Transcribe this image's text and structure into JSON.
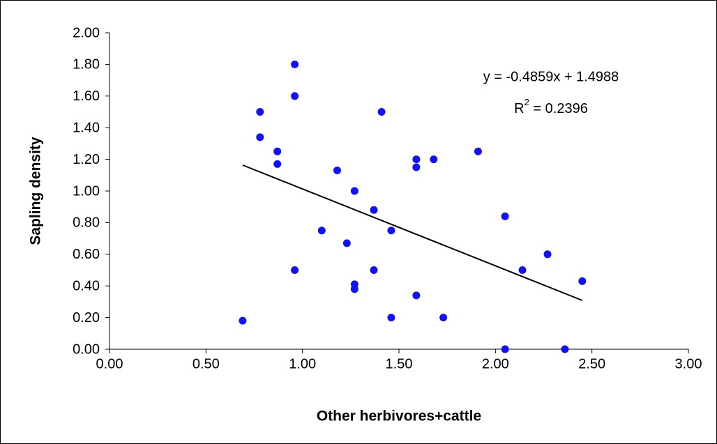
{
  "chart_data": {
    "type": "scatter",
    "x_label": "Other herbivores+cattle",
    "y_label": "Sapling density",
    "color": "#1010ff",
    "x": [
      0.69,
      0.78,
      0.78,
      0.87,
      0.87,
      0.96,
      0.96,
      0.96,
      1.1,
      1.18,
      1.23,
      1.27,
      1.27,
      1.27,
      1.41,
      1.37,
      1.37,
      1.46,
      1.46,
      1.59,
      1.59,
      1.59,
      1.68,
      1.73,
      1.91,
      2.05,
      2.05,
      2.14,
      2.27,
      2.36,
      2.45
    ],
    "values": [
      0.18,
      1.5,
      1.34,
      1.25,
      1.17,
      1.8,
      1.6,
      0.5,
      0.75,
      1.13,
      0.67,
      1.0,
      0.41,
      0.38,
      1.5,
      0.88,
      0.5,
      0.75,
      0.2,
      1.2,
      1.15,
      0.34,
      1.2,
      0.2,
      1.25,
      0.84,
      0.0,
      0.5,
      0.6,
      0.0,
      0.43
    ],
    "trendline": {
      "slope": -0.4859,
      "intercept": 1.4988,
      "color": "#000000"
    },
    "annotations": {
      "equation": "y = -0.4859x + 1.4988",
      "r_squared": {
        "base": "R",
        "sup": "2",
        "rest": " = 0.2396"
      }
    },
    "xlim": [
      0,
      3
    ],
    "ylim": [
      0,
      2
    ],
    "xticks": [
      {
        "value": 0,
        "label": "0.00"
      },
      {
        "value": 0.5,
        "label": "0.50"
      },
      {
        "value": 1,
        "label": "1.00"
      },
      {
        "value": 1.5,
        "label": "1.50"
      },
      {
        "value": 2,
        "label": "2.00"
      },
      {
        "value": 2.5,
        "label": "2.50"
      },
      {
        "value": 3,
        "label": "3.00"
      }
    ],
    "yticks": [
      {
        "value": 0,
        "label": "0.00"
      },
      {
        "value": 0.2,
        "label": "0.20"
      },
      {
        "value": 0.4,
        "label": "0.40"
      },
      {
        "value": 0.6,
        "label": "0.60"
      },
      {
        "value": 0.8,
        "label": "0.80"
      },
      {
        "value": 1,
        "label": "1.00"
      },
      {
        "value": 1.2,
        "label": "1.20"
      },
      {
        "value": 1.4,
        "label": "1.40"
      },
      {
        "value": 1.6,
        "label": "1.60"
      },
      {
        "value": 1.8,
        "label": "1.80"
      },
      {
        "value": 2,
        "label": "2.00"
      }
    ],
    "grid": false
  }
}
